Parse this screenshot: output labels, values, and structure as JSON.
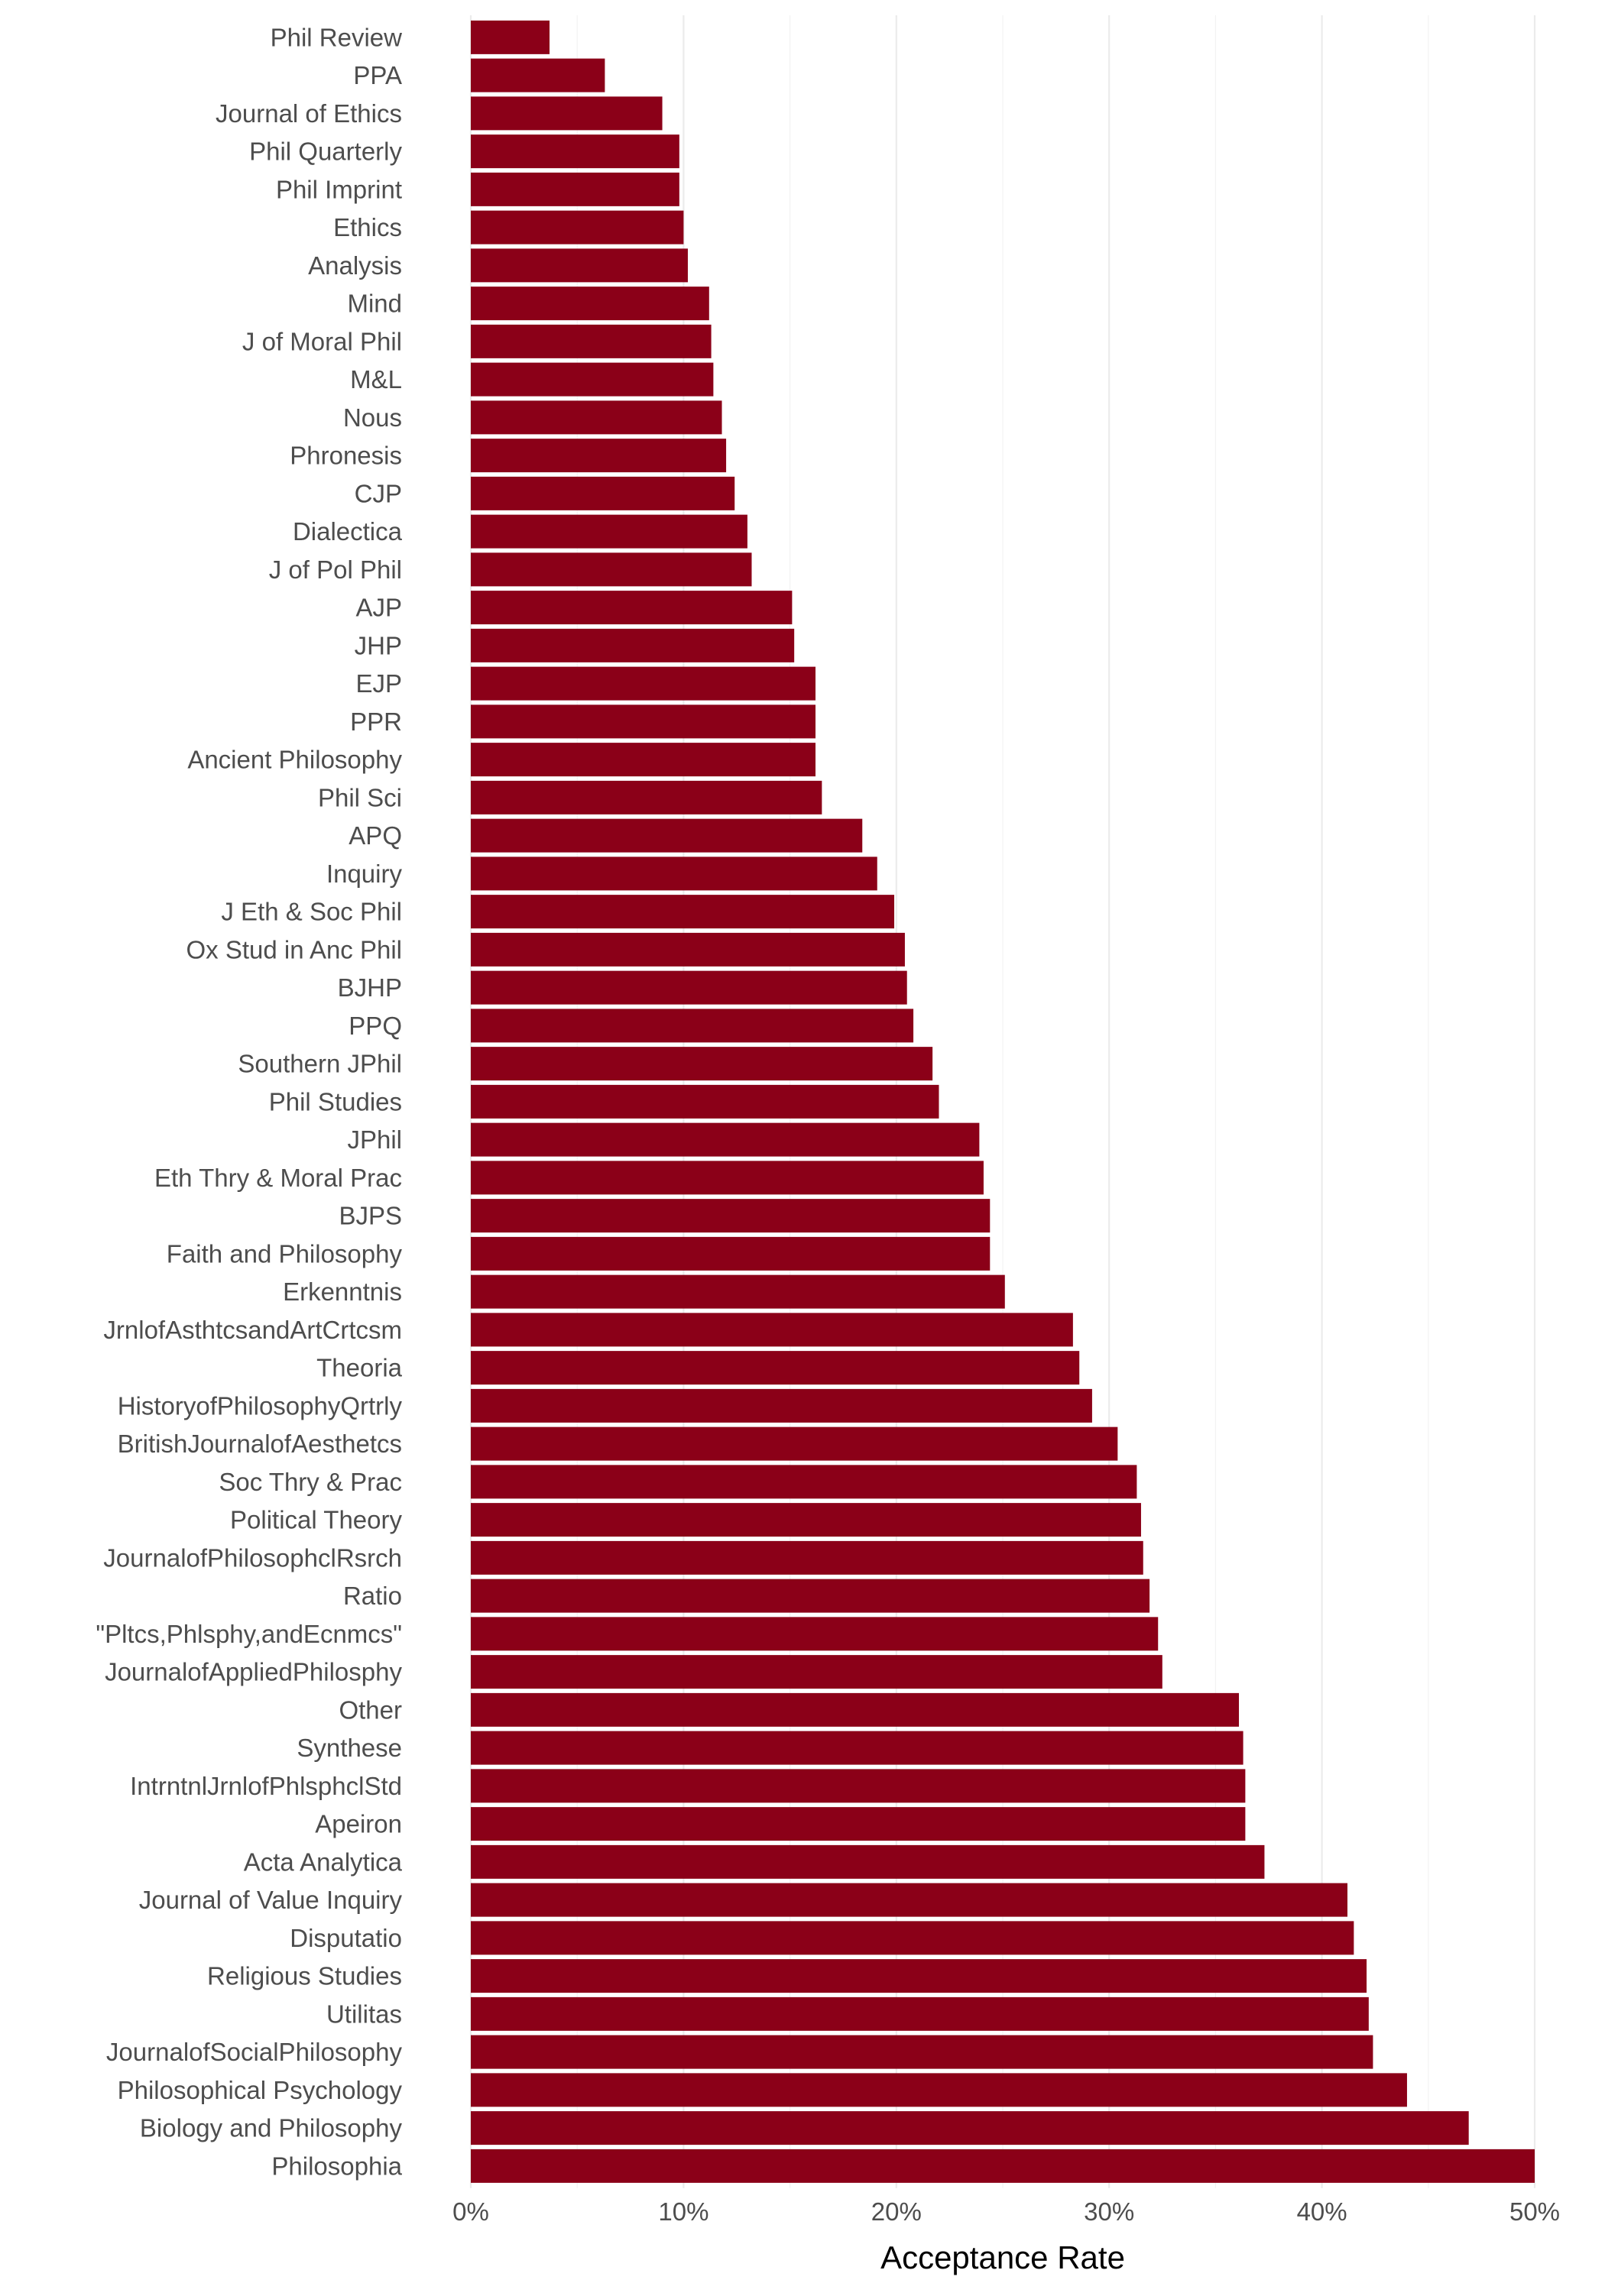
{
  "chart_data": {
    "type": "bar",
    "orientation": "horizontal",
    "title": "",
    "xlabel": "Acceptance Rate",
    "ylabel": "",
    "xlim": [
      0,
      0.5
    ],
    "x_ticks": [
      0,
      0.1,
      0.2,
      0.3,
      0.4,
      0.5
    ],
    "x_tick_labels": [
      "0%",
      "10%",
      "20%",
      "30%",
      "40%",
      "50%"
    ],
    "grid": "vertical",
    "legend": "none",
    "bar_color": "#8b0018",
    "categories": [
      "Phil Review",
      "PPA",
      "Journal of Ethics",
      "Phil Quarterly",
      "Phil Imprint",
      "Ethics",
      "Analysis",
      "Mind",
      "J of Moral Phil",
      "M&L",
      "Nous",
      "Phronesis",
      "CJP",
      "Dialectica",
      "J of Pol Phil",
      "AJP",
      "JHP",
      "EJP",
      "PPR",
      "Ancient Philosophy",
      "Phil Sci",
      "APQ",
      "Inquiry",
      "J Eth & Soc Phil",
      "Ox Stud in Anc Phil",
      "BJHP",
      "PPQ",
      "Southern JPhil",
      "Phil Studies",
      "JPhil",
      "Eth Thry & Moral Prac",
      "BJPS",
      "Faith and Philosophy",
      "Erkenntnis",
      "JrnlofAsthtcsandArtCrtcsm",
      "Theoria",
      "HistoryofPhilosophyQrtrly",
      "BritishJournalofAesthetcs",
      "Soc Thry & Prac",
      "Political Theory",
      "JournalofPhilosophclRsrch",
      "Ratio",
      "\"Pltcs,Phlsphy,andEcnmcs\"",
      "JournalofAppliedPhilosphy",
      "Other",
      "Synthese",
      "IntrntnlJrnlofPhlsphclStd",
      "Apeiron",
      "Acta Analytica",
      "Journal of Value Inquiry",
      "Disputatio",
      "Religious Studies",
      "Utilitas",
      "JournalofSocialPhilosophy",
      "Philosophical Psychology",
      "Biology and Philosophy",
      "Philosophia"
    ],
    "values": [
      0.037,
      0.063,
      0.09,
      0.098,
      0.098,
      0.1,
      0.102,
      0.112,
      0.113,
      0.114,
      0.118,
      0.12,
      0.124,
      0.13,
      0.132,
      0.151,
      0.152,
      0.162,
      0.162,
      0.162,
      0.165,
      0.184,
      0.191,
      0.199,
      0.204,
      0.205,
      0.208,
      0.217,
      0.22,
      0.239,
      0.241,
      0.244,
      0.244,
      0.251,
      0.283,
      0.286,
      0.292,
      0.304,
      0.313,
      0.315,
      0.316,
      0.319,
      0.323,
      0.325,
      0.361,
      0.363,
      0.364,
      0.364,
      0.373,
      0.412,
      0.415,
      0.421,
      0.422,
      0.424,
      0.44,
      0.469,
      0.5
    ]
  }
}
